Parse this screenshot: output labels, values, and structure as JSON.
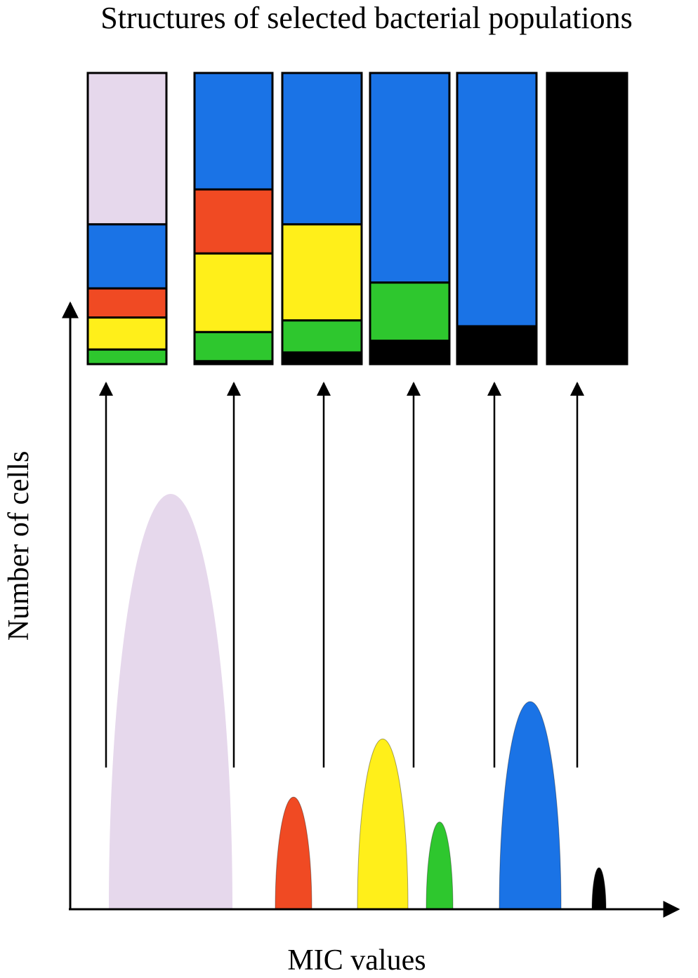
{
  "title": "Structures of selected bacterial populations",
  "y_axis_label": "Number of cells",
  "x_axis_label": "MIC values",
  "colors": {
    "lavender": "#e6d8ec",
    "red": "#f04a23",
    "yellow": "#ffef1a",
    "green": "#2ec72e",
    "blue": "#1a73e6",
    "black": "#000000",
    "outline": "#000000",
    "arrow": "#000000"
  },
  "peaks": [
    {
      "name": "subpopulation-lavender",
      "color": "lavender",
      "relative_height": 1.0
    },
    {
      "name": "subpopulation-red",
      "color": "red",
      "relative_height": 0.27
    },
    {
      "name": "subpopulation-yellow",
      "color": "yellow",
      "relative_height": 0.41
    },
    {
      "name": "subpopulation-green",
      "color": "green",
      "relative_height": 0.21
    },
    {
      "name": "subpopulation-blue",
      "color": "blue",
      "relative_height": 0.5
    },
    {
      "name": "subpopulation-black",
      "color": "black",
      "relative_height": 0.1
    }
  ],
  "population_bars": [
    {
      "name": "population-1",
      "composition_top_to_bottom": [
        {
          "color": "lavender",
          "fraction": 0.52
        },
        {
          "color": "blue",
          "fraction": 0.22
        },
        {
          "color": "red",
          "fraction": 0.1
        },
        {
          "color": "yellow",
          "fraction": 0.11
        },
        {
          "color": "green",
          "fraction": 0.05
        }
      ]
    },
    {
      "name": "population-2",
      "composition_top_to_bottom": [
        {
          "color": "blue",
          "fraction": 0.4
        },
        {
          "color": "red",
          "fraction": 0.22
        },
        {
          "color": "yellow",
          "fraction": 0.27
        },
        {
          "color": "green",
          "fraction": 0.1
        },
        {
          "color": "black",
          "fraction": 0.01
        }
      ]
    },
    {
      "name": "population-3",
      "composition_top_to_bottom": [
        {
          "color": "blue",
          "fraction": 0.52
        },
        {
          "color": "yellow",
          "fraction": 0.33
        },
        {
          "color": "green",
          "fraction": 0.11
        },
        {
          "color": "black",
          "fraction": 0.04
        }
      ]
    },
    {
      "name": "population-4",
      "composition_top_to_bottom": [
        {
          "color": "blue",
          "fraction": 0.72
        },
        {
          "color": "green",
          "fraction": 0.2
        },
        {
          "color": "black",
          "fraction": 0.08
        }
      ]
    },
    {
      "name": "population-5",
      "composition_top_to_bottom": [
        {
          "color": "blue",
          "fraction": 0.87
        },
        {
          "color": "black",
          "fraction": 0.13
        }
      ]
    },
    {
      "name": "population-6",
      "composition_top_to_bottom": [
        {
          "color": "black",
          "fraction": 1.0
        }
      ]
    }
  ]
}
